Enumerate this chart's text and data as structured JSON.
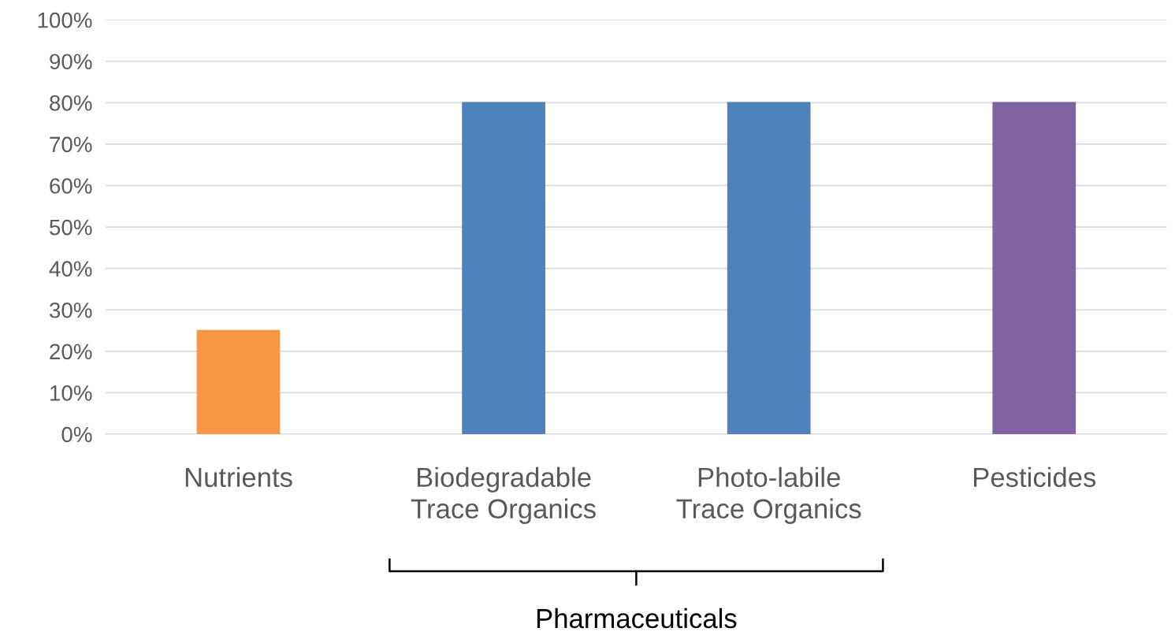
{
  "chart_data": {
    "type": "bar",
    "categories": [
      "Nutrients",
      "Biodegradable\nTrace Organics",
      "Photo-labile\nTrace Organics",
      "Pesticides"
    ],
    "values": [
      25,
      80,
      80,
      80
    ],
    "colors": [
      "#f79646",
      "#4f81bd",
      "#4f81bd",
      "#8064a2"
    ],
    "ylim": [
      0,
      100
    ],
    "yticks": [
      {
        "value": 0,
        "label": "0%"
      },
      {
        "value": 10,
        "label": "10%"
      },
      {
        "value": 20,
        "label": "20%"
      },
      {
        "value": 30,
        "label": "30%"
      },
      {
        "value": 40,
        "label": "40%"
      },
      {
        "value": 50,
        "label": "50%"
      },
      {
        "value": 60,
        "label": "60%"
      },
      {
        "value": 70,
        "label": "70%"
      },
      {
        "value": 80,
        "label": "80%"
      },
      {
        "value": 90,
        "label": "90%"
      },
      {
        "value": 100,
        "label": "100%"
      }
    ],
    "grid": "y",
    "annotations": [
      "Pharmaceuticals"
    ]
  }
}
